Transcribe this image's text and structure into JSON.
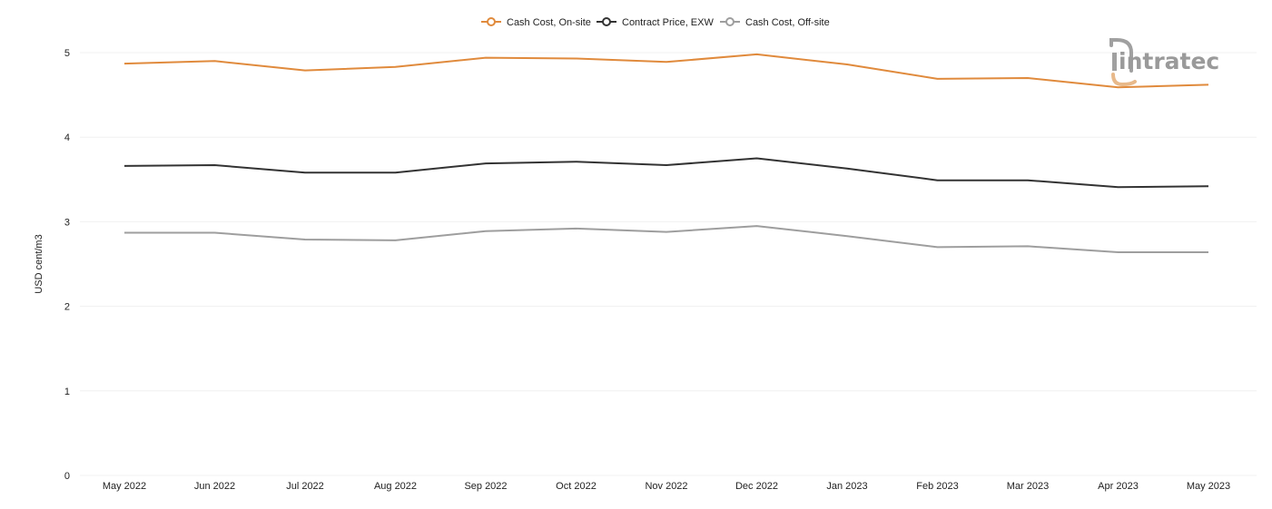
{
  "chart_data": {
    "type": "line",
    "title": "",
    "xlabel": "",
    "ylabel": "USD cent/m3",
    "ylim": [
      0,
      5.3
    ],
    "yticks": [
      0,
      1,
      2,
      3,
      4,
      5
    ],
    "grid": "horizontal",
    "legend_position": "top-center",
    "categories": [
      "May 2022",
      "Jun 2022",
      "Jul 2022",
      "Aug 2022",
      "Sep 2022",
      "Oct 2022",
      "Nov 2022",
      "Dec 2022",
      "Jan 2023",
      "Feb 2023",
      "Mar 2023",
      "Apr 2023",
      "May 2023"
    ],
    "series": [
      {
        "name": "Cash Cost, On-site",
        "color": "#e08a3c",
        "values": [
          4.87,
          4.9,
          4.79,
          4.83,
          4.94,
          4.93,
          4.89,
          4.98,
          4.86,
          4.69,
          4.7,
          4.59,
          4.62
        ]
      },
      {
        "name": "Contract Price, EXW",
        "color": "#333333",
        "values": [
          3.66,
          3.67,
          3.58,
          3.58,
          3.69,
          3.71,
          3.67,
          3.75,
          3.63,
          3.49,
          3.49,
          3.41,
          3.42
        ]
      },
      {
        "name": "Cash Cost, Off-site",
        "color": "#9e9e9e",
        "values": [
          2.87,
          2.87,
          2.79,
          2.78,
          2.89,
          2.92,
          2.88,
          2.95,
          2.83,
          2.7,
          2.71,
          2.64,
          2.64
        ]
      }
    ]
  },
  "logo": {
    "text": "intratec",
    "icon": "intratec-logo-icon",
    "color": "#9a9a9a",
    "accent": "#e8b98a"
  }
}
